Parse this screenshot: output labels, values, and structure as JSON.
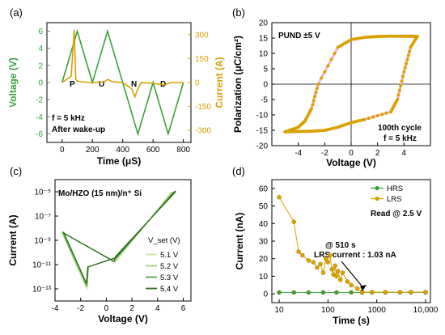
{
  "chart_data": [
    {
      "panel": "(a)",
      "type": "line",
      "xlabel": "Time (μS)",
      "ylabel_left": "Voltage (V)",
      "ylabel_right": "Current (A)",
      "xlim": [
        -100,
        850
      ],
      "ylim_left": [
        -7,
        7
      ],
      "ylim_right": [
        -375,
        375
      ],
      "xticks": [
        "0",
        "200",
        "400",
        "600",
        "800"
      ],
      "yticks_left": [
        "6",
        "4",
        "2",
        "0",
        "-2",
        "-4",
        "-6"
      ],
      "yticks_right": [
        "300",
        "150",
        "0",
        "-150",
        "-300"
      ],
      "pulse_labels": [
        "P",
        "U",
        "N",
        "D"
      ],
      "annotations": [
        "f = 5 kHz",
        "After wake-up"
      ],
      "voltage": {
        "x": [
          0,
          100,
          200,
          300,
          400,
          500,
          600,
          700,
          800
        ],
        "y": [
          0,
          6,
          0,
          6,
          0,
          -6,
          0,
          -6,
          0
        ]
      },
      "current": {
        "x": [
          0,
          60,
          80,
          90,
          100,
          120,
          200,
          280,
          300,
          330,
          400,
          460,
          480,
          500,
          520,
          600,
          680,
          700,
          720,
          800
        ],
        "y": [
          0,
          40,
          330,
          20,
          10,
          5,
          0,
          5,
          20,
          5,
          0,
          -40,
          -90,
          -40,
          0,
          -5,
          -15,
          -5,
          0,
          0
        ]
      },
      "colors": {
        "voltage": "#3aa03a",
        "current": "#d9a000"
      }
    },
    {
      "panel": "(b)",
      "type": "scatter",
      "xlabel": "Voltage (V)",
      "ylabel": "Polarization (μC/cm²)",
      "xlim": [
        -6,
        6
      ],
      "ylim": [
        -20,
        20
      ],
      "xticks": [
        "-4",
        "-2",
        "0",
        "2",
        "4"
      ],
      "yticks": [
        "20",
        "15",
        "10",
        "5",
        "0",
        "-5",
        "-10",
        "-15",
        "-20"
      ],
      "annotations": [
        "PUND ±5 V",
        "100th cycle",
        "f = 5 kHz"
      ],
      "upper_branch": {
        "x": [
          -5,
          -4,
          -3.5,
          -3,
          -2.5,
          -1,
          0,
          1,
          2,
          3,
          4,
          4.5,
          5
        ],
        "y": [
          -15.5,
          -14,
          -12,
          -8,
          0,
          12,
          14.5,
          15.2,
          15.5,
          15.6,
          15.6,
          15.6,
          15.5
        ]
      },
      "lower_branch": {
        "x": [
          5,
          4.5,
          4,
          3.5,
          3,
          1,
          0,
          -1,
          -2,
          -3,
          -4,
          -4.5,
          -5
        ],
        "y": [
          15.5,
          12,
          4,
          -5,
          -9,
          -11.5,
          -12.5,
          -14,
          -15,
          -15.3,
          -15.4,
          -15.4,
          -15.5
        ]
      },
      "colors": {
        "marker": "#d9a000",
        "fill": "#f4b8c7"
      }
    },
    {
      "panel": "(c)",
      "type": "line",
      "scale_y": "log",
      "xlabel": "Voltage (V)",
      "ylabel": "Current (A)",
      "xlim": [
        -4,
        6.6
      ],
      "ylim_exp": [
        -14,
        -4
      ],
      "xticks": [
        "-4",
        "-2",
        "0",
        "2",
        "4",
        "6"
      ],
      "yticks": [
        "10⁻⁵",
        "10⁻⁷",
        "10⁻⁹",
        "10⁻¹¹",
        "10⁻¹³"
      ],
      "annotations": [
        "Mo/HZO (15 nm)/n⁺ Si"
      ],
      "legend_title": "V_set (V)",
      "series": [
        {
          "name": "5.1 V",
          "color": "#cde4a6",
          "vmax": 5.1
        },
        {
          "name": "5.2 V",
          "color": "#9cd07a",
          "vmax": 5.2
        },
        {
          "name": "5.3 V",
          "color": "#5aa64a",
          "vmax": 5.3
        },
        {
          "name": "5.4 V",
          "color": "#2e7020",
          "vmax": 5.4
        }
      ]
    },
    {
      "panel": "(d)",
      "type": "scatter",
      "scale_x": "log",
      "xlabel": "Time (s)",
      "ylabel": "Current (nA)",
      "xlim_exp": [
        0.85,
        4.1
      ],
      "ylim": [
        -5,
        65
      ],
      "xticks": [
        "10",
        "100",
        "1000",
        "10,000"
      ],
      "yticks": [
        "60",
        "50",
        "40",
        "30",
        "20",
        "10",
        "0"
      ],
      "annotations": [
        "Read @ 2.5 V",
        "@ 510 s",
        "LRS current : 1.03 nA"
      ],
      "series": [
        {
          "name": "HRS",
          "color": "#3aa03a",
          "x": [
            10,
            20,
            40,
            80,
            150,
            300,
            500,
            800,
            1500,
            3000,
            5000,
            10000
          ],
          "y": [
            0.8,
            0.8,
            0.8,
            0.8,
            0.8,
            0.8,
            0.8,
            0.8,
            0.8,
            0.8,
            0.8,
            0.8
          ]
        },
        {
          "name": "LRS",
          "color": "#d9a000",
          "x": [
            10,
            20,
            25,
            30,
            40,
            50,
            60,
            70,
            80,
            90,
            100,
            110,
            120,
            130,
            140,
            150,
            160,
            180,
            200,
            250,
            300,
            400,
            500,
            800,
            1500,
            3000,
            5000,
            10000
          ],
          "y": [
            55,
            41,
            24,
            22,
            19,
            18,
            15,
            17,
            12,
            20,
            18,
            22,
            14,
            11,
            16,
            10,
            13,
            8,
            12,
            7,
            5,
            3,
            1.03,
            1.0,
            1.0,
            1.0,
            1.0,
            1.0
          ]
        }
      ]
    }
  ]
}
